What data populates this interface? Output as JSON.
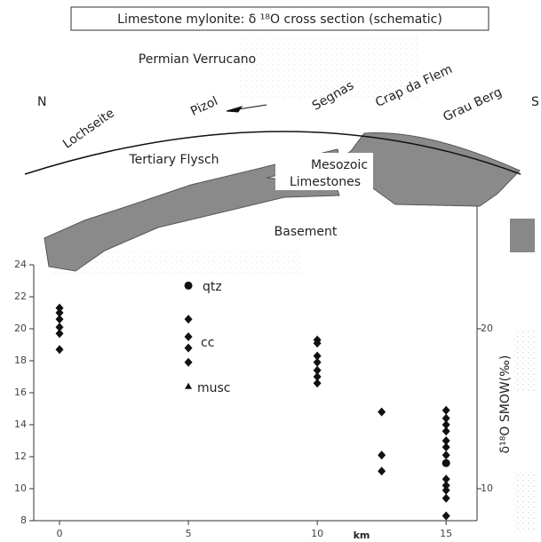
{
  "title": "Limestone mylonite: δ ¹⁸O cross section (schematic)",
  "section_labels": {
    "north": "N",
    "south": "S",
    "top_unit": "Permian Verrucano",
    "localities": [
      "Lochseite",
      "Pizol",
      "Segnas",
      "Crap da Flem",
      "Grau Berg"
    ],
    "flysch": "Tertiary Flysch",
    "mesozoic": "Mesozoic",
    "limestones": "Limestones",
    "basement": "Basement"
  },
  "chart_data": {
    "type": "scatter",
    "x_label": "km",
    "y2_label": "δ¹⁸O SMOW(‰)",
    "xlim": [
      -1,
      16.2
    ],
    "xticks": [
      0,
      5,
      10,
      15
    ],
    "ylim": [
      8,
      24
    ],
    "yticks": [
      8,
      10,
      12,
      14,
      16,
      18,
      20,
      22,
      24
    ],
    "y2lim": [
      8,
      24
    ],
    "y2ticks": [
      10,
      20
    ],
    "series": [
      {
        "name": "cc",
        "marker": "diamond",
        "color": "#111",
        "x": [
          0,
          0,
          0,
          0,
          0,
          0,
          5,
          5,
          5,
          5,
          10,
          10,
          10,
          10,
          10,
          10,
          10,
          12.5,
          12.5,
          12.5,
          15,
          15,
          15,
          15,
          15,
          15,
          15,
          15,
          15,
          15,
          15,
          15
        ],
        "values": [
          21.3,
          21.0,
          20.6,
          20.1,
          19.7,
          18.7,
          20.6,
          19.5,
          18.8,
          17.9,
          19.3,
          19.1,
          18.3,
          17.9,
          17.4,
          17.0,
          16.6,
          14.8,
          12.1,
          11.1,
          14.9,
          14.4,
          14.0,
          13.6,
          13.0,
          12.6,
          12.1,
          10.6,
          10.2,
          9.9,
          9.4,
          8.3
        ]
      },
      {
        "name": "qtz",
        "marker": "circle",
        "color": "#111",
        "x": [
          5,
          15
        ],
        "values": [
          22.7,
          11.6
        ]
      },
      {
        "name": "musc",
        "marker": "triangle",
        "color": "#111",
        "x": [
          5
        ],
        "values": [
          16.4
        ]
      }
    ]
  }
}
